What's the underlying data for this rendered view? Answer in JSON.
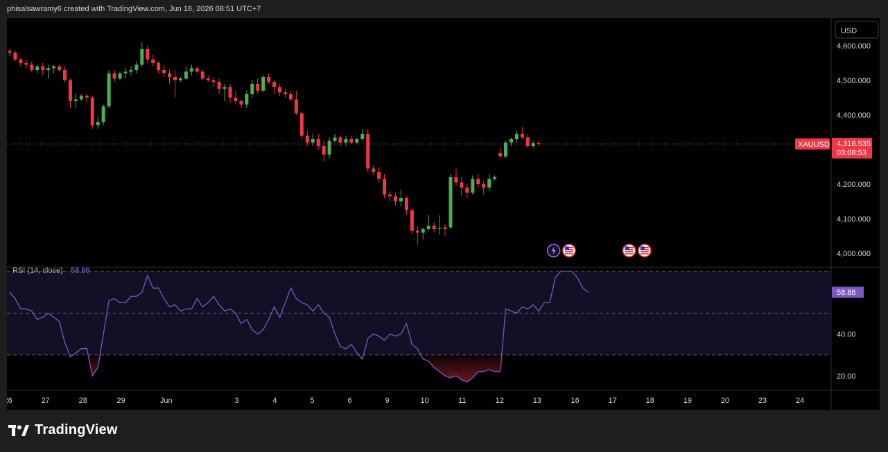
{
  "header": {
    "attribution": "phisalsawramy6 created with TradingView.com, Jun 16, 2026 08:51 UTC+7"
  },
  "footer": {
    "brand": "TradingView"
  },
  "currency_button": "USD",
  "colors": {
    "up": "#26a69a",
    "up_fill": "#4caf50",
    "down": "#f23645",
    "rsi": "#7e57c2",
    "price_tag": "#f23645",
    "background": "#000000"
  },
  "chart_data": [
    {
      "type": "candlestick",
      "symbol": "XAUUSD",
      "last_price": "4,316.535",
      "countdown": "03:08:53",
      "y_ticks": [
        {
          "value": 4000,
          "label": "4,000.000"
        },
        {
          "value": 4100,
          "label": "4,100.000"
        },
        {
          "value": 4200,
          "label": "4,200.000"
        },
        {
          "value": 4300,
          "label": "4,300.000"
        },
        {
          "value": 4400,
          "label": "4,400.000"
        },
        {
          "value": 4500,
          "label": "4,500.000"
        },
        {
          "value": 4600,
          "label": "4,600.000"
        }
      ],
      "ylim": [
        3960,
        4680
      ],
      "x_ticks": [
        {
          "label": "26",
          "index": -0.3
        },
        {
          "label": "27",
          "index": 6.5
        },
        {
          "label": "28",
          "index": 13.3
        },
        {
          "label": "29",
          "index": 20.2
        },
        {
          "label": "Jun",
          "index": 28.4
        },
        {
          "label": "3",
          "index": 41.2
        },
        {
          "label": "4",
          "index": 48.1
        },
        {
          "label": "5",
          "index": 54.9
        },
        {
          "label": "6",
          "index": 61.7
        },
        {
          "label": "9",
          "index": 68.5
        },
        {
          "label": "10",
          "index": 75.3
        },
        {
          "label": "11",
          "index": 82.1
        },
        {
          "label": "12",
          "index": 88.9
        },
        {
          "label": "13",
          "index": 95.7
        },
        {
          "label": "16",
          "index": 102.6
        },
        {
          "label": "17",
          "index": 109.4
        },
        {
          "label": "18",
          "index": 116.2
        },
        {
          "label": "19",
          "index": 123.0
        },
        {
          "label": "20",
          "index": 129.8
        },
        {
          "label": "23",
          "index": 136.6
        },
        {
          "label": "24",
          "index": 143.4
        }
      ],
      "candles": [
        [
          4585,
          4590,
          4570,
          4580
        ],
        [
          4580,
          4585,
          4555,
          4560
        ],
        [
          4560,
          4565,
          4540,
          4550
        ],
        [
          4550,
          4560,
          4535,
          4545
        ],
        [
          4545,
          4555,
          4525,
          4530
        ],
        [
          4530,
          4545,
          4520,
          4540
        ],
        [
          4540,
          4550,
          4515,
          4530
        ],
        [
          4530,
          4545,
          4505,
          4535
        ],
        [
          4535,
          4545,
          4520,
          4540
        ],
        [
          4540,
          4545,
          4525,
          4530
        ],
        [
          4530,
          4540,
          4495,
          4500
        ],
        [
          4500,
          4505,
          4420,
          4440
        ],
        [
          4440,
          4460,
          4420,
          4445
        ],
        [
          4445,
          4460,
          4440,
          4455
        ],
        [
          4455,
          4460,
          4435,
          4450
        ],
        [
          4450,
          4455,
          4360,
          4370
        ],
        [
          4370,
          4395,
          4360,
          4380
        ],
        [
          4380,
          4430,
          4370,
          4425
        ],
        [
          4425,
          4530,
          4420,
          4520
        ],
        [
          4520,
          4530,
          4495,
          4505
        ],
        [
          4505,
          4525,
          4500,
          4520
        ],
        [
          4520,
          4535,
          4505,
          4525
        ],
        [
          4525,
          4540,
          4515,
          4530
        ],
        [
          4530,
          4555,
          4520,
          4545
        ],
        [
          4545,
          4610,
          4540,
          4590
        ],
        [
          4590,
          4600,
          4550,
          4560
        ],
        [
          4560,
          4575,
          4540,
          4550
        ],
        [
          4550,
          4555,
          4520,
          4530
        ],
        [
          4530,
          4545,
          4510,
          4520
        ],
        [
          4520,
          4530,
          4490,
          4510
        ],
        [
          4510,
          4530,
          4450,
          4500
        ],
        [
          4500,
          4510,
          4495,
          4505
        ],
        [
          4505,
          4540,
          4500,
          4525
        ],
        [
          4525,
          4545,
          4515,
          4535
        ],
        [
          4535,
          4540,
          4520,
          4525
        ],
        [
          4525,
          4530,
          4500,
          4505
        ],
        [
          4505,
          4515,
          4495,
          4500
        ],
        [
          4500,
          4510,
          4480,
          4495
        ],
        [
          4495,
          4505,
          4460,
          4475
        ],
        [
          4475,
          4490,
          4440,
          4480
        ],
        [
          4480,
          4490,
          4435,
          4450
        ],
        [
          4450,
          4470,
          4430,
          4440
        ],
        [
          4440,
          4445,
          4420,
          4430
        ],
        [
          4430,
          4470,
          4420,
          4460
        ],
        [
          4460,
          4500,
          4450,
          4490
        ],
        [
          4490,
          4505,
          4460,
          4470
        ],
        [
          4470,
          4515,
          4465,
          4510
        ],
        [
          4510,
          4520,
          4490,
          4495
        ],
        [
          4495,
          4500,
          4460,
          4480
        ],
        [
          4480,
          4490,
          4455,
          4465
        ],
        [
          4465,
          4475,
          4450,
          4460
        ],
        [
          4460,
          4470,
          4440,
          4445
        ],
        [
          4445,
          4470,
          4400,
          4405
        ],
        [
          4405,
          4410,
          4330,
          4340
        ],
        [
          4340,
          4355,
          4310,
          4320
        ],
        [
          4320,
          4345,
          4310,
          4330
        ],
        [
          4330,
          4345,
          4300,
          4310
        ],
        [
          4310,
          4325,
          4265,
          4285
        ],
        [
          4285,
          4335,
          4275,
          4325
        ],
        [
          4325,
          4345,
          4320,
          4335
        ],
        [
          4335,
          4340,
          4310,
          4320
        ],
        [
          4320,
          4340,
          4310,
          4330
        ],
        [
          4330,
          4340,
          4315,
          4320
        ],
        [
          4320,
          4335,
          4315,
          4330
        ],
        [
          4330,
          4360,
          4325,
          4345
        ],
        [
          4345,
          4360,
          4235,
          4245
        ],
        [
          4245,
          4255,
          4225,
          4235
        ],
        [
          4235,
          4250,
          4205,
          4215
        ],
        [
          4215,
          4230,
          4160,
          4170
        ],
        [
          4170,
          4180,
          4150,
          4165
        ],
        [
          4165,
          4175,
          4140,
          4150
        ],
        [
          4150,
          4185,
          4135,
          4160
        ],
        [
          4160,
          4165,
          4110,
          4125
        ],
        [
          4125,
          4130,
          4055,
          4065
        ],
        [
          4065,
          4080,
          4025,
          4060
        ],
        [
          4060,
          4075,
          4040,
          4070
        ],
        [
          4070,
          4110,
          4065,
          4080
        ],
        [
          4080,
          4090,
          4060,
          4070
        ],
        [
          4070,
          4110,
          4055,
          4072
        ],
        [
          4075,
          4085,
          4050,
          4070
        ],
        [
          4075,
          4230,
          4070,
          4220
        ],
        [
          4220,
          4245,
          4195,
          4205
        ],
        [
          4205,
          4220,
          4165,
          4190
        ],
        [
          4190,
          4200,
          4160,
          4175
        ],
        [
          4175,
          4225,
          4170,
          4215
        ],
        [
          4215,
          4230,
          4190,
          4200
        ],
        [
          4200,
          4210,
          4170,
          4190
        ],
        [
          4190,
          4230,
          4180,
          4215
        ],
        [
          4215,
          4225,
          4210,
          4220
        ],
        [
          4290,
          4305,
          4275,
          4280
        ],
        [
          4280,
          4325,
          4275,
          4320
        ],
        [
          4320,
          4335,
          4310,
          4330
        ],
        [
          4330,
          4355,
          4320,
          4345
        ],
        [
          4345,
          4365,
          4330,
          4335
        ],
        [
          4335,
          4345,
          4305,
          4310
        ],
        [
          4310,
          4325,
          4305,
          4318
        ],
        [
          4318,
          4325,
          4310,
          4316
        ]
      ],
      "event_markers": [
        {
          "index": 98.7,
          "kind": "lightning"
        },
        {
          "index": 101.5,
          "kind": "us-flag"
        },
        {
          "index": 112.4,
          "kind": "us-flag"
        },
        {
          "index": 115.2,
          "kind": "us-flag"
        }
      ]
    },
    {
      "type": "line",
      "title": "RSI (14, close)",
      "last_value": "58.86",
      "y_ticks": [
        {
          "value": 20,
          "label": "20.00"
        },
        {
          "value": 40,
          "label": "40.00"
        }
      ],
      "levels": [
        70,
        50,
        30
      ],
      "ylim": [
        13,
        72
      ],
      "values": [
        60,
        57,
        52,
        52,
        51,
        47,
        48,
        50,
        48,
        46,
        36,
        29,
        31,
        33,
        33,
        20,
        24,
        40,
        56,
        57,
        55,
        55,
        58,
        58,
        60,
        68,
        62,
        62,
        57,
        53,
        54,
        51,
        52,
        52,
        57,
        53,
        55,
        58,
        54,
        51,
        52,
        50,
        45,
        47,
        42,
        40,
        42,
        47,
        53,
        48,
        55,
        62,
        57,
        55,
        54,
        51,
        54,
        50,
        48,
        40,
        34,
        33,
        35,
        31,
        28,
        38,
        40,
        39,
        37,
        40,
        39,
        40,
        45,
        35,
        33,
        28,
        27,
        24,
        22,
        20,
        19,
        20,
        18,
        17,
        19,
        22,
        22,
        23,
        22,
        22,
        52,
        51,
        50,
        53,
        52,
        54,
        51,
        55,
        55,
        67,
        70,
        70,
        70,
        67,
        62,
        60
      ]
    }
  ]
}
